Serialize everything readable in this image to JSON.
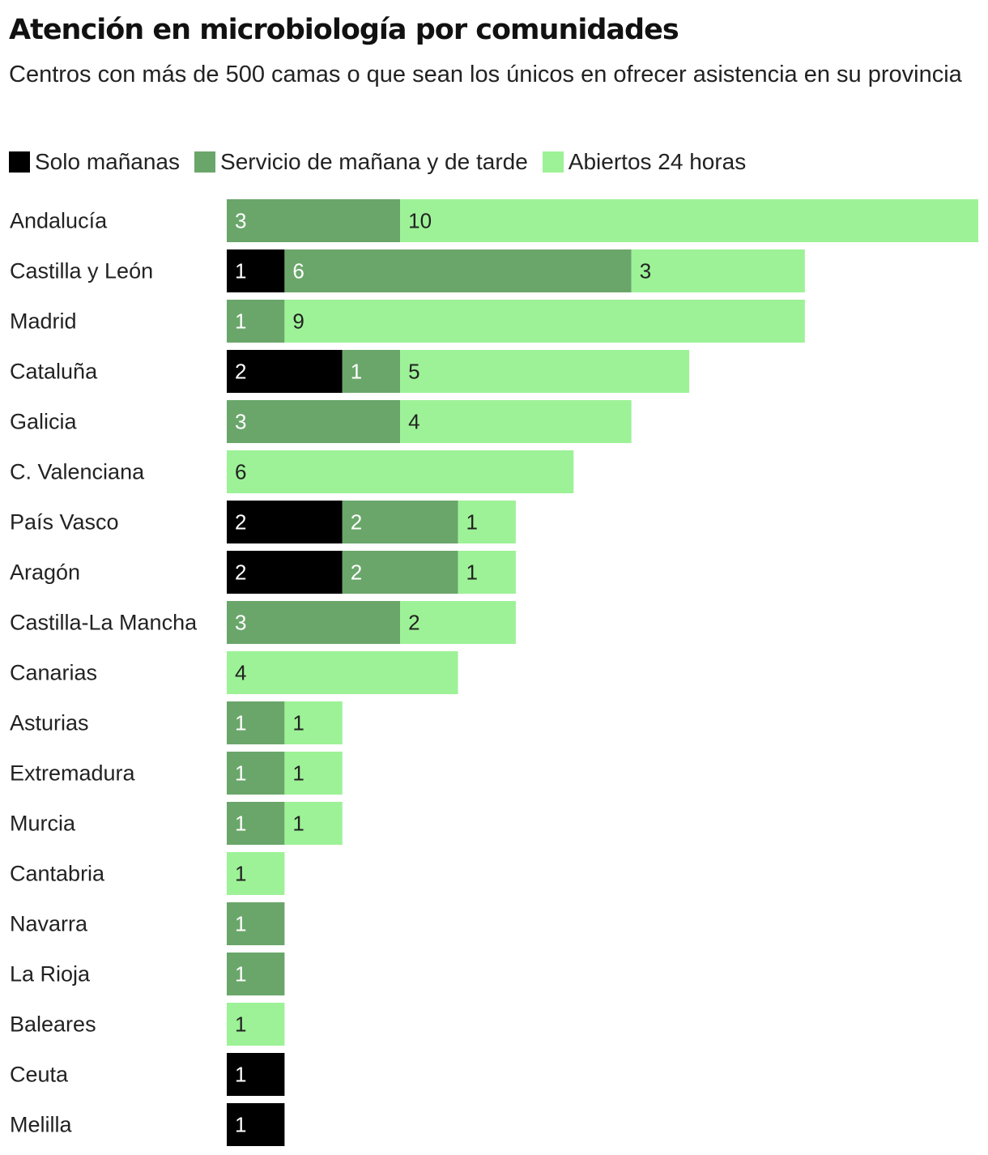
{
  "header": {
    "title": "Atención en microbiología por comunidades",
    "subtitle": "Centros con más de 500 camas o que sean los únicos en ofrecer asistencia en su provincia"
  },
  "legend": [
    {
      "name": "Solo mañanas",
      "color": "#000000"
    },
    {
      "name": "Servicio de mañana y de tarde",
      "color": "#6aa66a"
    },
    {
      "name": "Abiertos 24 horas",
      "color": "#9df297"
    }
  ],
  "chart_data": {
    "type": "bar",
    "orientation": "horizontal",
    "stacked": true,
    "title": "Atención en microbiología por comunidades",
    "subtitle": "Centros con más de 500 camas o que sean los únicos en ofrecer asistencia en su provincia",
    "xlabel": "",
    "ylabel": "",
    "legend_position": "top-left",
    "grid": false,
    "categories": [
      "Andalucía",
      "Castilla y León",
      "Madrid",
      "Cataluña",
      "Galicia",
      "C. Valenciana",
      "País Vasco",
      "Aragón",
      "Castilla-La Mancha",
      "Canarias",
      "Asturias",
      "Extremadura",
      "Murcia",
      "Cantabria",
      "Navarra",
      "La Rioja",
      "Baleares",
      "Ceuta",
      "Melilla"
    ],
    "series": [
      {
        "name": "Solo mañanas",
        "color": "#000000",
        "label_color": "#ffffff",
        "values": [
          0,
          1,
          0,
          2,
          0,
          0,
          2,
          2,
          0,
          0,
          0,
          0,
          0,
          0,
          0,
          0,
          0,
          1,
          1
        ]
      },
      {
        "name": "Servicio de mañana y de tarde",
        "color": "#6aa66a",
        "label_color": "#ffffff",
        "values": [
          3,
          6,
          1,
          1,
          3,
          0,
          2,
          2,
          3,
          0,
          1,
          1,
          1,
          0,
          1,
          1,
          0,
          0,
          0
        ]
      },
      {
        "name": "Abiertos 24 horas",
        "color": "#9df297",
        "label_color": "#222222",
        "values": [
          10,
          3,
          9,
          5,
          4,
          6,
          1,
          1,
          2,
          4,
          1,
          1,
          1,
          1,
          0,
          0,
          1,
          0,
          0
        ]
      }
    ],
    "xlim": [
      0,
      13
    ]
  }
}
